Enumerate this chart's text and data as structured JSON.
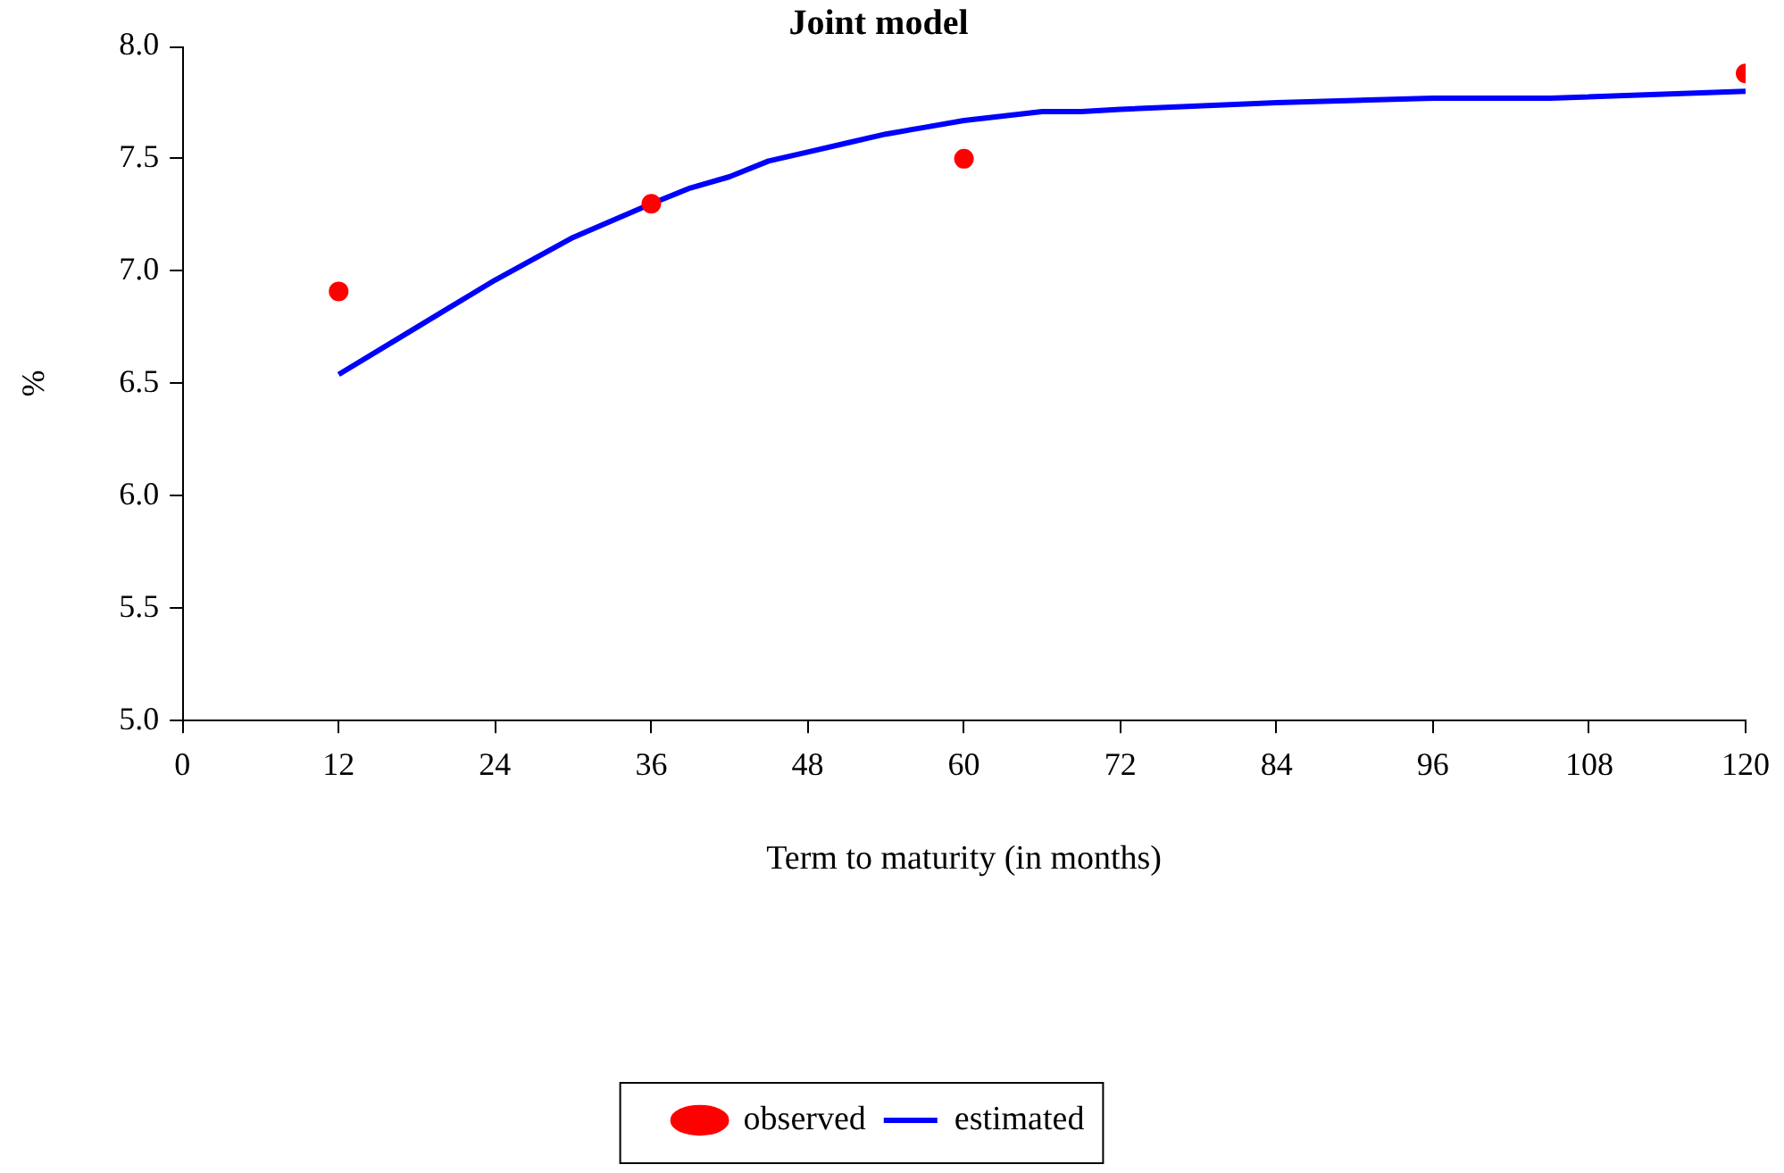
{
  "chart_data": {
    "type": "line",
    "title": "Joint model",
    "xlabel": "Term to maturity (in months)",
    "ylabel": "%",
    "xlim": [
      0,
      120
    ],
    "xticks": [
      0,
      12,
      24,
      36,
      48,
      60,
      72,
      84,
      96,
      108,
      120
    ],
    "ylim": [
      5,
      8
    ],
    "yticks": [
      {
        "value": 5,
        "label": "5.0"
      },
      {
        "value": 5.5,
        "label": "5.5"
      },
      {
        "value": 6,
        "label": "6.0"
      },
      {
        "value": 6.5,
        "label": "6.5"
      },
      {
        "value": 7,
        "label": "7.0"
      },
      {
        "value": 7.5,
        "label": "7.5"
      },
      {
        "value": 8,
        "label": "8.0"
      }
    ],
    "grid": false,
    "legend": "bottom",
    "series": [
      {
        "name": "observed",
        "type": "scatter",
        "color": "#ff0000",
        "marker": "circle",
        "x": [
          12,
          36,
          60,
          120
        ],
        "values": [
          6.91,
          7.3,
          7.5,
          7.88
        ]
      },
      {
        "name": "estimated",
        "type": "line",
        "color": "#0000ff",
        "marker": "none",
        "line_style": "solid",
        "x": [
          12,
          18,
          24,
          30,
          36,
          39,
          42,
          45,
          48,
          51,
          54,
          57,
          60,
          63,
          66,
          69,
          72,
          84,
          96,
          105,
          120
        ],
        "values": [
          6.54,
          6.75,
          6.96,
          7.15,
          7.3,
          7.37,
          7.42,
          7.49,
          7.53,
          7.57,
          7.61,
          7.64,
          7.67,
          7.69,
          7.71,
          7.71,
          7.72,
          7.75,
          7.77,
          7.77,
          7.8
        ]
      }
    ]
  }
}
